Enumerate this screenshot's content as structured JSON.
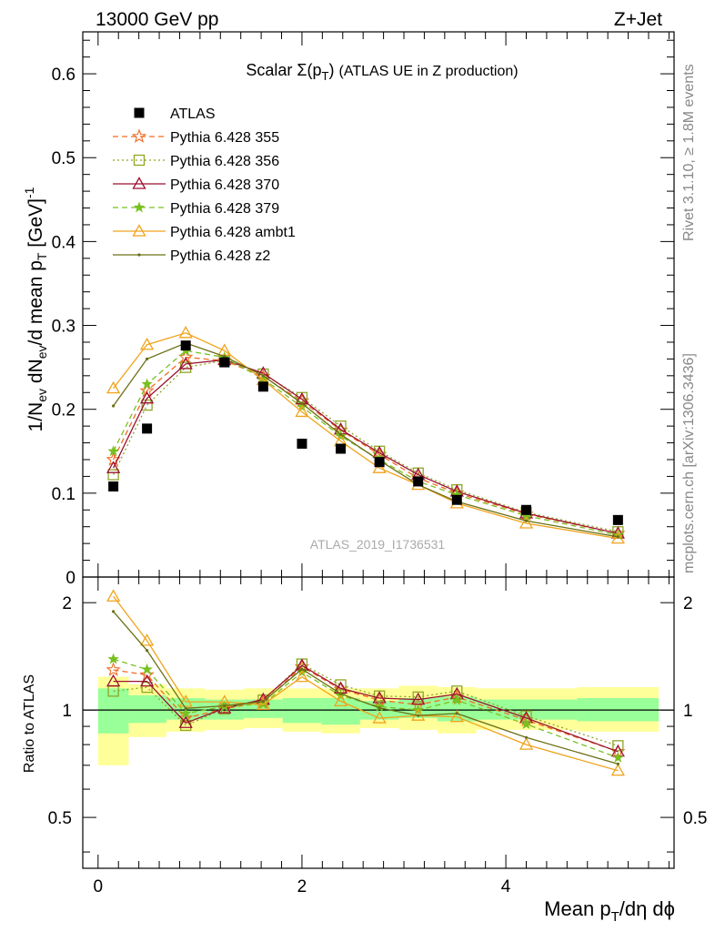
{
  "header": {
    "left": "13000 GeV pp",
    "right": "Z+Jet"
  },
  "side_labels": {
    "rivet": "Rivet 3.1.10, ≥ 1.8M events",
    "mcplots": "mcplots.cern.ch [arXiv:1306.3436]"
  },
  "chart_data": {
    "type": "line",
    "title": "Scalar Σ(p_T) (ATLAS UE in Z production)",
    "watermark": "ATLAS_2019_I1736531",
    "xlabel": "Mean p_T/dη dϕ",
    "ylabel": "1/N_ev dN_ev/d mean p_T [GeV]^-1",
    "ratio_ylabel": "Ratio to ATLAS",
    "xlim": [
      -0.15,
      5.65
    ],
    "ylim": [
      0,
      0.65
    ],
    "ratio_ylim": [
      0.36,
      2.36
    ],
    "ratio_ylog": true,
    "x_ticks": [
      0,
      2,
      4
    ],
    "y_ticks": [
      0,
      0.1,
      0.2,
      0.3,
      0.4,
      0.5,
      0.6
    ],
    "y_tick_labels": [
      "0",
      "0.1",
      "0.2",
      "0.3",
      "0.4",
      "0.5",
      "0.6"
    ],
    "ratio_ticks": [
      0.5,
      1,
      2
    ],
    "ratio_tick_labels": [
      "0.5",
      "1",
      "2"
    ],
    "legend_position": "top-left",
    "x": [
      0.15,
      0.48,
      0.86,
      1.24,
      1.62,
      2.0,
      2.38,
      2.76,
      3.14,
      3.52,
      4.2,
      5.1
    ],
    "bin_edges": [
      0.0,
      0.3,
      0.67,
      1.05,
      1.43,
      1.81,
      2.19,
      2.57,
      2.95,
      3.33,
      3.71,
      4.7,
      5.5
    ],
    "data": {
      "name": "ATLAS",
      "values": [
        0.108,
        0.177,
        0.276,
        0.256,
        0.227,
        0.159,
        0.153,
        0.137,
        0.114,
        0.092,
        0.08,
        0.068
      ]
    },
    "band_stat": [
      [
        0.86,
        1.15
      ],
      [
        0.92,
        1.1
      ],
      [
        0.94,
        1.08
      ],
      [
        0.94,
        1.07
      ],
      [
        0.95,
        1.07
      ],
      [
        0.92,
        1.08
      ],
      [
        0.91,
        1.08
      ],
      [
        0.94,
        1.06
      ],
      [
        0.95,
        1.08
      ],
      [
        0.93,
        1.09
      ],
      [
        0.94,
        1.07
      ],
      [
        0.93,
        1.08
      ]
    ],
    "band_total": [
      [
        0.7,
        1.24
      ],
      [
        0.84,
        1.18
      ],
      [
        0.87,
        1.15
      ],
      [
        0.88,
        1.14
      ],
      [
        0.89,
        1.15
      ],
      [
        0.87,
        1.15
      ],
      [
        0.86,
        1.15
      ],
      [
        0.89,
        1.15
      ],
      [
        0.88,
        1.17
      ],
      [
        0.86,
        1.16
      ],
      [
        0.88,
        1.15
      ],
      [
        0.87,
        1.16
      ]
    ],
    "series": [
      {
        "name": "Pythia 6.428 355",
        "color": "#f26b24",
        "dash": "6,4",
        "marker": "star-open",
        "values": [
          0.14,
          0.222,
          0.262,
          0.258,
          0.239,
          0.21,
          0.175,
          0.146,
          0.118,
          0.1,
          0.075,
          0.052
        ]
      },
      {
        "name": "Pythia 6.428 356",
        "color": "#8ea625",
        "dash": "2,3",
        "marker": "square-open",
        "values": [
          0.122,
          0.205,
          0.25,
          0.258,
          0.242,
          0.214,
          0.18,
          0.15,
          0.124,
          0.104,
          0.077,
          0.054
        ]
      },
      {
        "name": "Pythia 6.428 370",
        "color": "#9b1230",
        "dash": "",
        "marker": "triangle-open",
        "values": [
          0.13,
          0.213,
          0.254,
          0.259,
          0.243,
          0.212,
          0.176,
          0.148,
          0.122,
          0.102,
          0.076,
          0.052
        ]
      },
      {
        "name": "Pythia 6.428 379",
        "color": "#79c021",
        "dash": "6,4",
        "marker": "star-filled",
        "values": [
          0.15,
          0.23,
          0.27,
          0.262,
          0.236,
          0.203,
          0.168,
          0.14,
          0.114,
          0.098,
          0.073,
          0.05
        ]
      },
      {
        "name": "Pythia 6.428 ambt1",
        "color": "#f0a31c",
        "dash": "",
        "marker": "triangle-open",
        "values": [
          0.225,
          0.277,
          0.291,
          0.27,
          0.235,
          0.197,
          0.162,
          0.13,
          0.11,
          0.088,
          0.064,
          0.046
        ]
      },
      {
        "name": "Pythia 6.428 z2",
        "color": "#6b7016",
        "dash": "",
        "marker": "dot",
        "values": [
          0.204,
          0.26,
          0.279,
          0.263,
          0.24,
          0.207,
          0.17,
          0.139,
          0.11,
          0.09,
          0.067,
          0.048
        ]
      }
    ]
  }
}
